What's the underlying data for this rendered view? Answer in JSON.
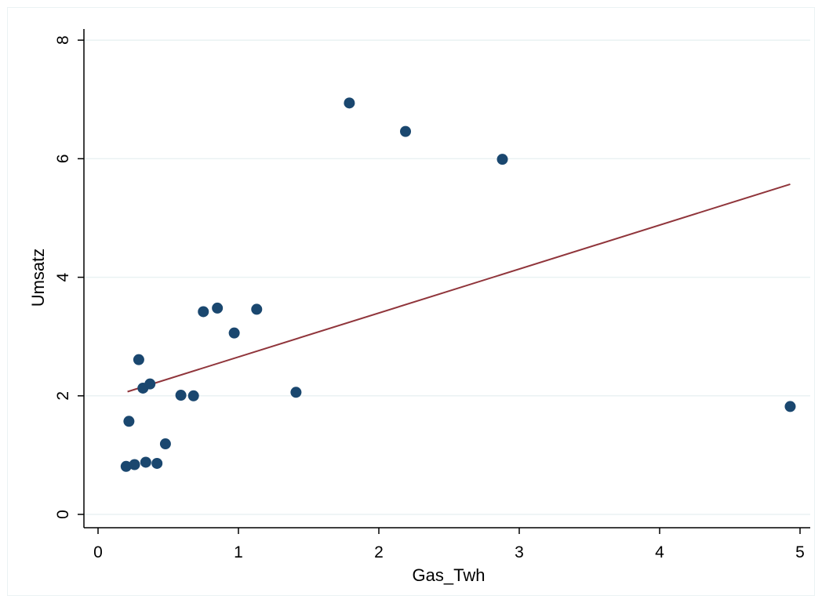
{
  "chart_data": {
    "type": "scatter",
    "xlabel": "Gas_Twh",
    "ylabel": "Umsatz",
    "xlim": [
      0,
      5
    ],
    "ylim": [
      0,
      8
    ],
    "xticks": [
      "0",
      "1",
      "2",
      "3",
      "4",
      "5"
    ],
    "yticks": [
      "0",
      "2",
      "4",
      "6",
      "8"
    ],
    "grid": true,
    "series": [
      {
        "color": "#1a476f",
        "points": [
          {
            "x": 0.2,
            "y": 0.81
          },
          {
            "x": 0.22,
            "y": 1.57
          },
          {
            "x": 0.26,
            "y": 0.84
          },
          {
            "x": 0.29,
            "y": 2.61
          },
          {
            "x": 0.32,
            "y": 2.13
          },
          {
            "x": 0.34,
            "y": 0.88
          },
          {
            "x": 0.37,
            "y": 2.2
          },
          {
            "x": 0.42,
            "y": 0.86
          },
          {
            "x": 0.48,
            "y": 1.19
          },
          {
            "x": 0.59,
            "y": 2.01
          },
          {
            "x": 0.68,
            "y": 2.0
          },
          {
            "x": 0.75,
            "y": 3.42
          },
          {
            "x": 0.85,
            "y": 3.48
          },
          {
            "x": 0.97,
            "y": 3.06
          },
          {
            "x": 1.13,
            "y": 3.46
          },
          {
            "x": 1.41,
            "y": 2.06
          },
          {
            "x": 1.79,
            "y": 6.94
          },
          {
            "x": 2.19,
            "y": 6.46
          },
          {
            "x": 2.88,
            "y": 5.99
          },
          {
            "x": 4.93,
            "y": 1.82
          }
        ]
      },
      {
        "type": "line",
        "color": "#90353b",
        "points": [
          {
            "x": 0.21,
            "y": 2.07
          },
          {
            "x": 4.93,
            "y": 5.57
          }
        ]
      }
    ]
  }
}
